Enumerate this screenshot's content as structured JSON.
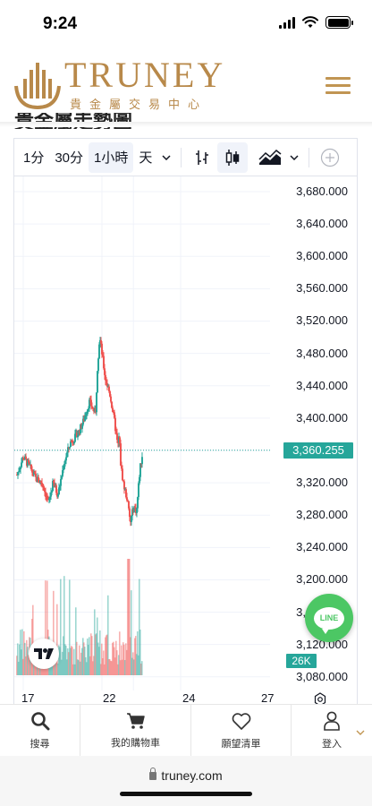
{
  "status_bar": {
    "time": "9:24"
  },
  "brand": {
    "name": "TRUNEY",
    "tagline": "貴金屬交易中心",
    "color": "#b8894a"
  },
  "page": {
    "title_cut": "貴金屬走勢圖"
  },
  "toolbar": {
    "intervals": [
      "1分",
      "30分",
      "1小時",
      "天"
    ],
    "active_interval": "1小時",
    "icons": [
      "bar-style-icon",
      "candles-style-icon",
      "area-style-icon",
      "add-indicator-icon"
    ]
  },
  "chart": {
    "price_scale": [
      "3,680.000",
      "3,640.000",
      "3,600.000",
      "3,560.000",
      "3,520.000",
      "3,480.000",
      "3,440.000",
      "3,400.000",
      "3,360.000",
      "3,320.000",
      "3,280.000",
      "3,240.000",
      "3,200.000",
      "3,160.000",
      "3,120.000",
      "3,080.000"
    ],
    "last_price": "3,360.255",
    "volume_label": "26K",
    "time_labels": [
      "17",
      "22",
      "24",
      "27"
    ],
    "up_color": "#26a69a",
    "down_color": "#ef5350"
  },
  "chart_data": {
    "type": "candlestick",
    "x_ticks": [
      "17",
      "22",
      "24",
      "27"
    ],
    "ylim": [
      3060,
      3700
    ],
    "last_price": 3360.255,
    "close_path": [
      [
        17.0,
        3330
      ],
      [
        17.4,
        3352
      ],
      [
        17.8,
        3340
      ],
      [
        18.2,
        3325
      ],
      [
        18.6,
        3320
      ],
      [
        19.0,
        3295
      ],
      [
        19.3,
        3320
      ],
      [
        19.6,
        3305
      ],
      [
        20.0,
        3345
      ],
      [
        20.4,
        3370
      ],
      [
        20.8,
        3378
      ],
      [
        21.2,
        3395
      ],
      [
        21.6,
        3420
      ],
      [
        22.0,
        3405
      ],
      [
        22.1,
        3460
      ],
      [
        22.25,
        3500
      ],
      [
        22.4,
        3480
      ],
      [
        22.6,
        3450
      ],
      [
        22.9,
        3430
      ],
      [
        23.2,
        3395
      ],
      [
        23.4,
        3365
      ],
      [
        23.5,
        3378
      ],
      [
        23.6,
        3340
      ],
      [
        23.8,
        3315
      ],
      [
        24.0,
        3300
      ],
      [
        24.2,
        3270
      ],
      [
        24.4,
        3290
      ],
      [
        24.6,
        3285
      ],
      [
        24.8,
        3335
      ],
      [
        25.0,
        3360
      ]
    ],
    "volume_peak": 26000
  },
  "bottom_nav": [
    {
      "label": "搜尋",
      "icon": "search-icon"
    },
    {
      "label": "我的購物車",
      "icon": "cart-icon"
    },
    {
      "label": "願望清單",
      "icon": "heart-icon"
    },
    {
      "label": "登入",
      "icon": "user-icon"
    }
  ],
  "browser": {
    "url": "truney.com"
  },
  "line_widget": {
    "label": "LINE",
    "color": "#4cc764"
  }
}
